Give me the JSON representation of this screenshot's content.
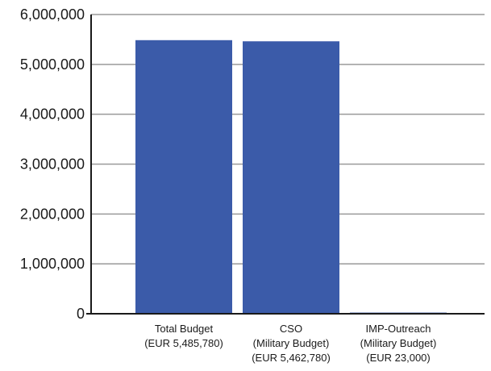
{
  "chart_data": {
    "type": "bar",
    "categories": [
      [
        "Total Budget",
        "(EUR 5,485,780)"
      ],
      [
        "CSO",
        "(Military Budget)",
        "(EUR 5,462,780)"
      ],
      [
        "IMP-Outreach",
        "(Military Budget)",
        "(EUR 23,000)"
      ]
    ],
    "values": [
      5485780,
      5462780,
      23000
    ],
    "ylim": [
      0,
      6000000
    ],
    "yticks": [
      0,
      1000000,
      2000000,
      3000000,
      4000000,
      5000000,
      6000000
    ],
    "ytick_labels": [
      "0",
      "1,000,000",
      "2,000,000",
      "3,000,000",
      "4,000,000",
      "5,000,000",
      "6,000,000"
    ],
    "grid": true,
    "legend": "none",
    "bar_color": "#3b5ba9",
    "title": "",
    "xlabel": "",
    "ylabel": ""
  }
}
